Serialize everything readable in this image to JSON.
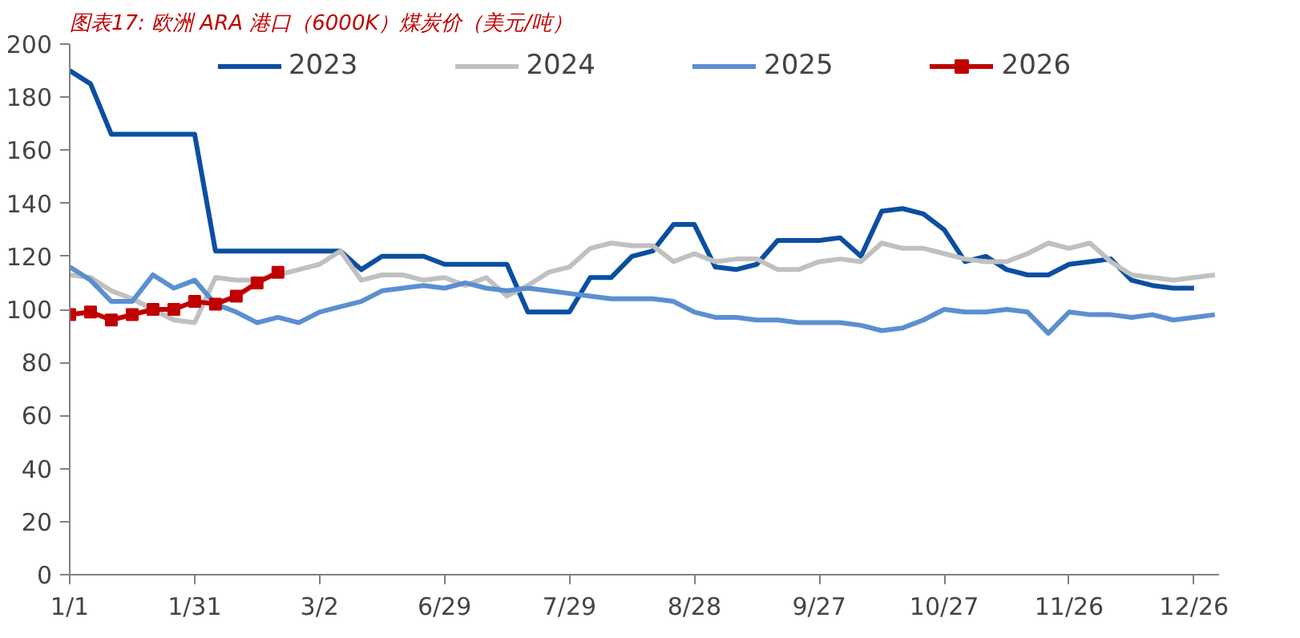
{
  "chart_data": {
    "type": "line",
    "title": "图表17: 欧洲 ARA 港口（6000K）煤炭价（美元/吨）",
    "categories": [
      "1/1",
      null,
      null,
      null,
      null,
      null,
      "1/31",
      null,
      null,
      null,
      null,
      null,
      "3/2",
      null,
      null,
      null,
      null,
      null,
      "6/29",
      null,
      null,
      null,
      null,
      null,
      "7/29",
      null,
      null,
      null,
      null,
      null,
      "8/28",
      null,
      null,
      null,
      null,
      null,
      "9/27",
      null,
      null,
      null,
      null,
      null,
      "10/27",
      null,
      null,
      null,
      null,
      null,
      "11/26",
      null,
      null,
      null,
      null,
      null,
      "12/26",
      null
    ],
    "ylim": [
      0,
      200
    ],
    "yticks": [
      0,
      20,
      40,
      60,
      80,
      100,
      120,
      140,
      160,
      180,
      200
    ],
    "grid": false,
    "legend": "top",
    "line_style": "solid",
    "series": [
      {
        "name": "2023",
        "color": "#0b4ea2",
        "marker": "none",
        "values": [
          190,
          185,
          166,
          166,
          166,
          166,
          166,
          122,
          122,
          122,
          122,
          122,
          122,
          122,
          115,
          120,
          120,
          120,
          117,
          117,
          117,
          117,
          99,
          99,
          99,
          112,
          112,
          120,
          122,
          132,
          132,
          116,
          115,
          117,
          126,
          126,
          126,
          127,
          120,
          137,
          138,
          136,
          130,
          118,
          120,
          115,
          113,
          113,
          117,
          118,
          119,
          111,
          109,
          108,
          108,
          null
        ]
      },
      {
        "name": "2024",
        "color": "#c0c0c0",
        "marker": "none",
        "values": [
          113,
          112,
          107,
          104,
          100,
          96,
          95,
          112,
          111,
          111,
          113,
          115,
          117,
          122,
          111,
          113,
          113,
          111,
          112,
          109,
          112,
          105,
          109,
          114,
          116,
          123,
          125,
          124,
          124,
          118,
          121,
          118,
          119,
          119,
          115,
          115,
          118,
          119,
          118,
          125,
          123,
          123,
          121,
          119,
          118,
          118,
          121,
          125,
          123,
          125,
          118,
          113,
          112,
          111,
          112,
          113
        ]
      },
      {
        "name": "2025",
        "color": "#5b8fd0",
        "marker": "none",
        "values": [
          116,
          111,
          103,
          103,
          113,
          108,
          111,
          102,
          99,
          95,
          97,
          95,
          99,
          101,
          103,
          107,
          108,
          109,
          108,
          110,
          108,
          107,
          108,
          107,
          106,
          105,
          104,
          104,
          104,
          103,
          99,
          97,
          97,
          96,
          96,
          95,
          95,
          95,
          94,
          92,
          93,
          96,
          100,
          99,
          99,
          100,
          99,
          91,
          99,
          98,
          98,
          97,
          98,
          96,
          97,
          98
        ]
      },
      {
        "name": "2026",
        "color": "#c00000",
        "marker": "square",
        "values": [
          98,
          99,
          96,
          98,
          100,
          100,
          103,
          102,
          105,
          110,
          114,
          null,
          null,
          null,
          null,
          null,
          null,
          null,
          null,
          null,
          null,
          null,
          null,
          null,
          null,
          null,
          null,
          null,
          null,
          null,
          null,
          null,
          null,
          null,
          null,
          null,
          null,
          null,
          null,
          null,
          null,
          null,
          null,
          null,
          null,
          null,
          null,
          null,
          null,
          null,
          null,
          null,
          null,
          null,
          null,
          null
        ]
      }
    ]
  }
}
